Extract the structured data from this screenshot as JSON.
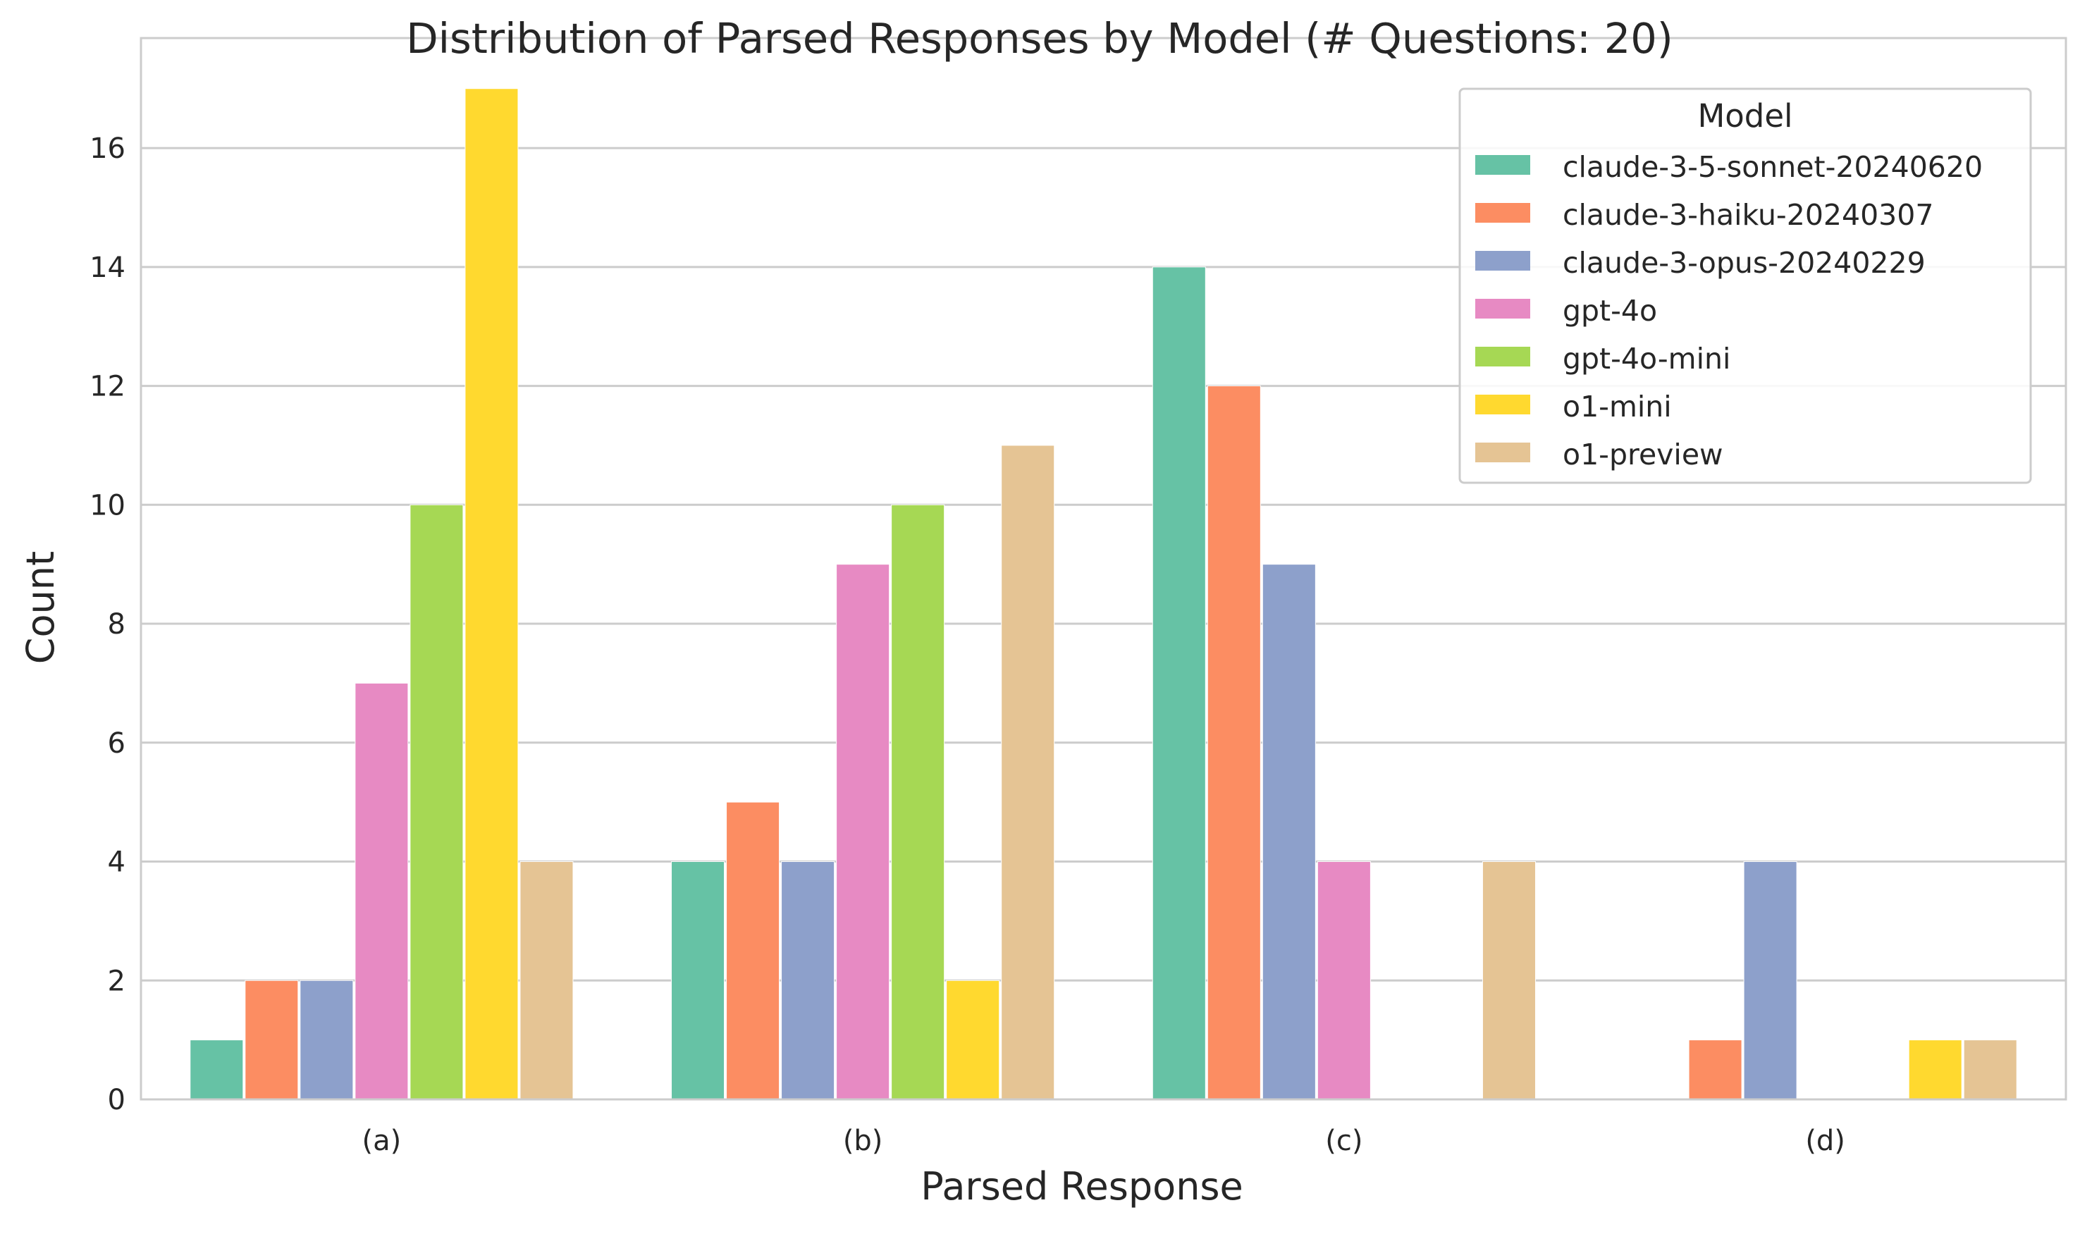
{
  "chart_data": {
    "type": "bar",
    "title": "Distribution of Parsed Responses by Model (# Questions: 20)",
    "xlabel": "Parsed Response",
    "ylabel": "Count",
    "categories": [
      "(a)",
      "(b)",
      "(c)",
      "(d)"
    ],
    "ylim": [
      0,
      17.85
    ],
    "yticks": [
      0,
      2,
      4,
      6,
      8,
      10,
      12,
      14,
      16
    ],
    "grid": "horizontal",
    "legend": {
      "title": "Model",
      "placement": "upper-right"
    },
    "series": [
      {
        "name": "claude-3-5-sonnet-20240620",
        "color": "#66c2a5",
        "values": [
          1,
          4,
          14,
          0
        ]
      },
      {
        "name": "claude-3-haiku-20240307",
        "color": "#fc8d62",
        "values": [
          2,
          5,
          12,
          1
        ]
      },
      {
        "name": "claude-3-opus-20240229",
        "color": "#8da0cb",
        "values": [
          2,
          4,
          9,
          4
        ]
      },
      {
        "name": "gpt-4o",
        "color": "#e78ac3",
        "values": [
          7,
          9,
          4,
          0
        ]
      },
      {
        "name": "gpt-4o-mini",
        "color": "#a6d854",
        "values": [
          10,
          10,
          0,
          0
        ]
      },
      {
        "name": "o1-mini",
        "color": "#ffd92f",
        "values": [
          17,
          2,
          0,
          1
        ]
      },
      {
        "name": "o1-preview",
        "color": "#e5c494",
        "values": [
          4,
          11,
          4,
          1
        ]
      }
    ]
  }
}
